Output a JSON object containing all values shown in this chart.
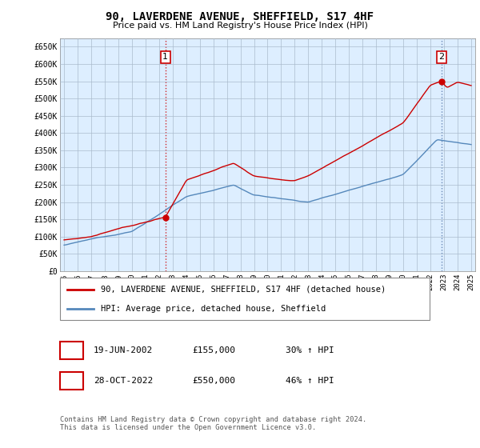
{
  "title": "90, LAVERDENE AVENUE, SHEFFIELD, S17 4HF",
  "subtitle": "Price paid vs. HM Land Registry's House Price Index (HPI)",
  "legend_line1": "90, LAVERDENE AVENUE, SHEFFIELD, S17 4HF (detached house)",
  "legend_line2": "HPI: Average price, detached house, Sheffield",
  "annotation1_date": "19-JUN-2002",
  "annotation1_price": "£155,000",
  "annotation1_hpi": "30% ↑ HPI",
  "annotation2_date": "28-OCT-2022",
  "annotation2_price": "£550,000",
  "annotation2_hpi": "46% ↑ HPI",
  "footer": "Contains HM Land Registry data © Crown copyright and database right 2024.\nThis data is licensed under the Open Government Licence v3.0.",
  "red_color": "#cc0000",
  "blue_color": "#5588bb",
  "bg_color": "#ddeeff",
  "grid_color": "#aabbcc",
  "ylim": [
    0,
    675000
  ],
  "yticks": [
    0,
    50000,
    100000,
    150000,
    200000,
    250000,
    300000,
    350000,
    400000,
    450000,
    500000,
    550000,
    600000,
    650000
  ],
  "ytick_labels": [
    "£0",
    "£50K",
    "£100K",
    "£150K",
    "£200K",
    "£250K",
    "£300K",
    "£350K",
    "£400K",
    "£450K",
    "£500K",
    "£550K",
    "£600K",
    "£650K"
  ],
  "vline1_x": 2002.47,
  "vline2_x": 2022.83,
  "point1_x": 2002.47,
  "point1_y": 155000,
  "point2_x": 2022.83,
  "point2_y": 550000,
  "xmin": 1994.7,
  "xmax": 2025.3,
  "xticks": [
    1995,
    1996,
    1997,
    1998,
    1999,
    2000,
    2001,
    2002,
    2003,
    2004,
    2005,
    2006,
    2007,
    2008,
    2009,
    2010,
    2011,
    2012,
    2013,
    2014,
    2015,
    2016,
    2017,
    2018,
    2019,
    2020,
    2021,
    2022,
    2023,
    2024,
    2025
  ]
}
